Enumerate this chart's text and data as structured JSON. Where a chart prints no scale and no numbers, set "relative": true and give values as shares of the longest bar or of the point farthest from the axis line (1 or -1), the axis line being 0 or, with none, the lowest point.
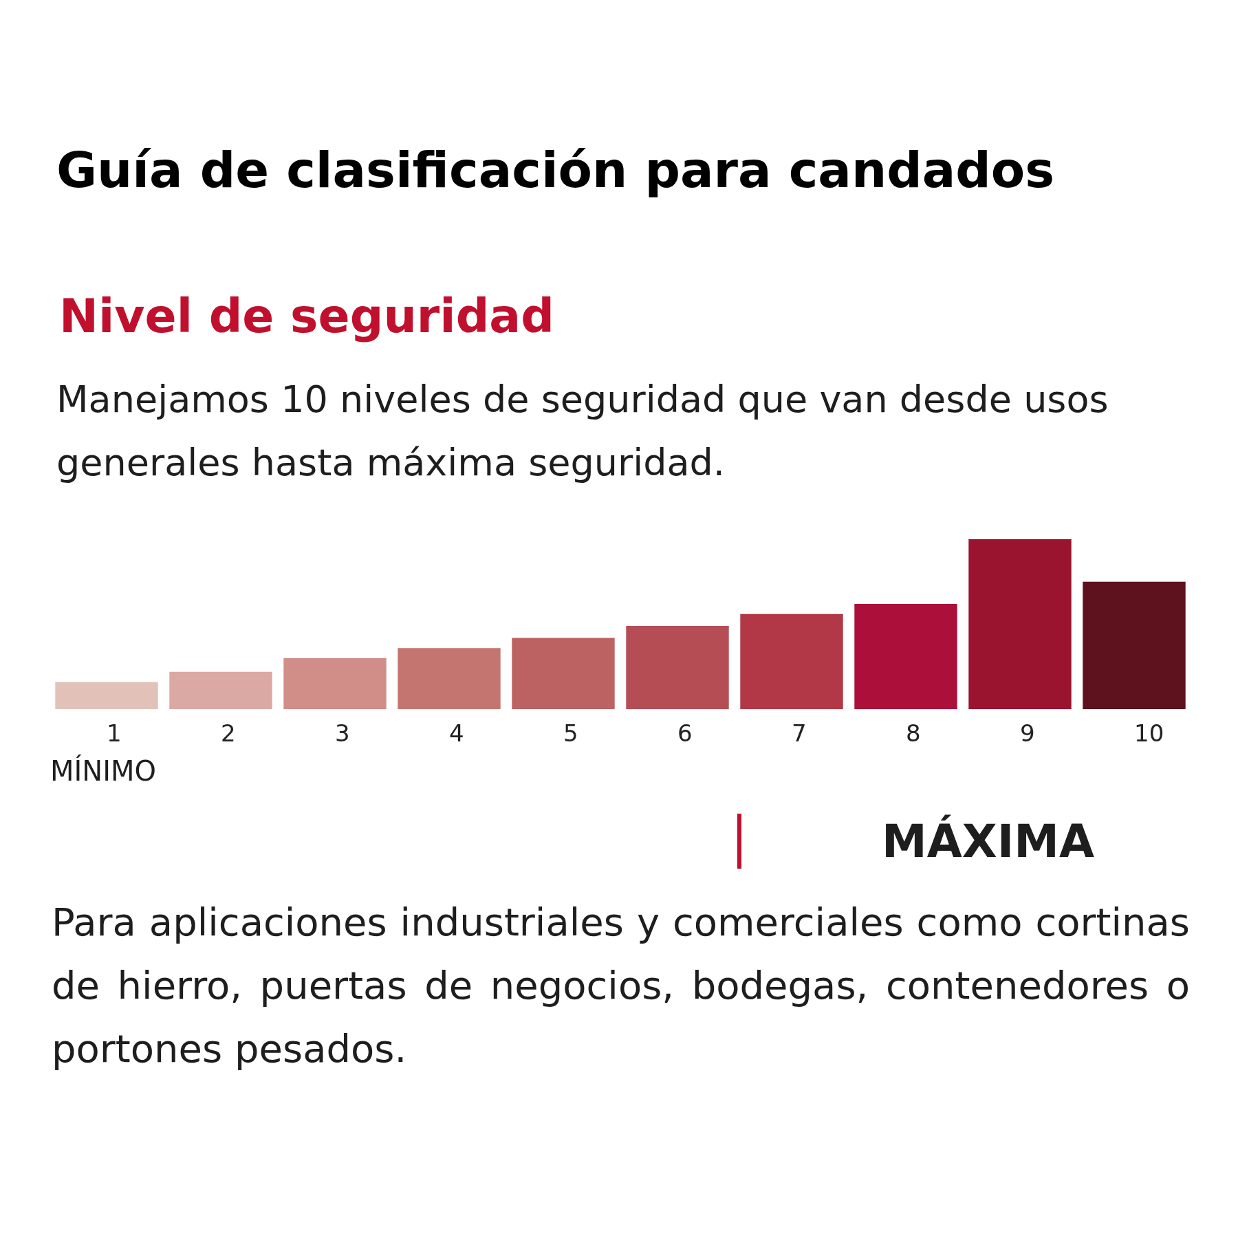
{
  "chart_data": {
    "type": "bar",
    "relative": true,
    "title": "Guía de clasificación para candados",
    "subtitle": "Nivel de seguridad",
    "annotations": [
      "Manejamos 10 niveles de seguridad que van desde usos generales hasta máxima seguridad.",
      "MÍNIMO",
      "MÁXIMA",
      "Para aplicaciones industriales y comerciales como cortinas de hierro, puertas de negocios, bodegas, contenedores o portones pesados."
    ],
    "categories": [
      "1",
      "2",
      "3",
      "4",
      "5",
      "6",
      "7",
      "8",
      "9",
      "10"
    ],
    "values": [
      0.16,
      0.22,
      0.3,
      0.36,
      0.42,
      0.49,
      0.56,
      0.62,
      1,
      0.75
    ],
    "colors": [
      "#e2c2b8",
      "#dba9a3",
      "#d18d87",
      "#c57570",
      "#bc6263",
      "#b54d55",
      "#b23848",
      "#ac103a",
      "#9a1430",
      "#5e121e"
    ]
  }
}
